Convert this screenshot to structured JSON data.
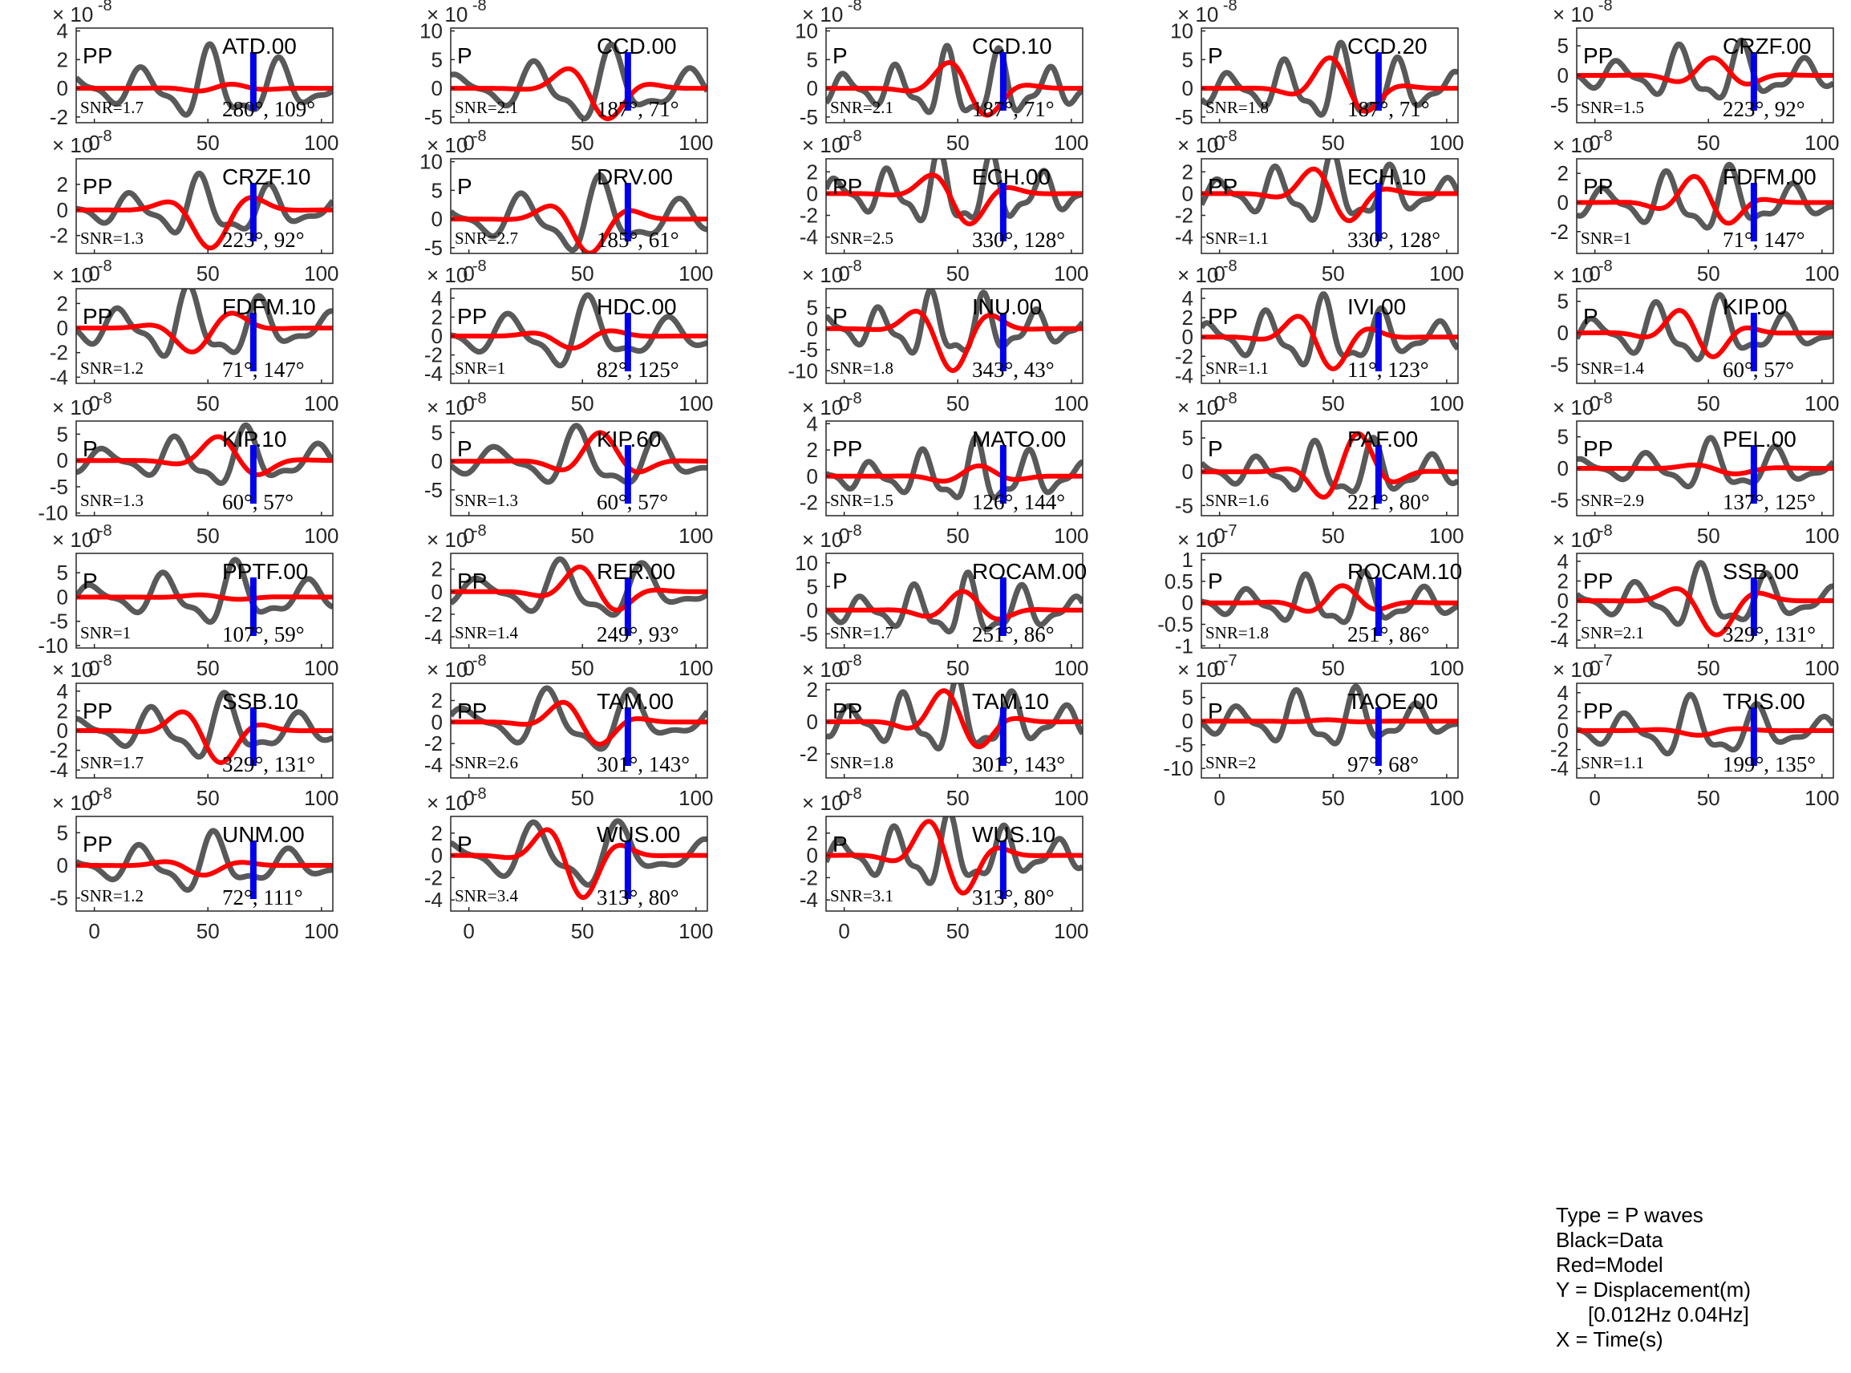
{
  "chart_data": {
    "type": "line",
    "xticks": [
      0,
      50,
      100
    ],
    "xlim": [
      -8,
      105
    ],
    "series_legend": [
      "Black=Data",
      "Red=Model"
    ],
    "colors": {
      "data": "#595959",
      "model": "#ff0000",
      "pick": "#0000ee"
    },
    "panels": [
      {
        "station": "ATD.00",
        "phase": "PP",
        "snr": "SNR=1.7",
        "angles": "280°, 109°",
        "exp": "-8",
        "yticks": [
          -2,
          0,
          2,
          4
        ],
        "ylim": [
          -2.4,
          4.2
        ],
        "data_env": 3.2,
        "model_env": 0.3,
        "seed": 1
      },
      {
        "station": "CCD.00",
        "phase": "P",
        "snr": "SNR=2.1",
        "angles": "187°, 71°",
        "exp": "-8",
        "yticks": [
          -5,
          0,
          5,
          10
        ],
        "ylim": [
          -6,
          10.5
        ],
        "data_env": 8,
        "model_env": 6,
        "seed": 2
      },
      {
        "station": "CCD.10",
        "phase": "P",
        "snr": "SNR=2.1",
        "angles": "187°, 71°",
        "exp": "-8",
        "yticks": [
          -5,
          0,
          5,
          10
        ],
        "ylim": [
          -6,
          10.5
        ],
        "data_env": 8,
        "model_env": 6,
        "seed": 3
      },
      {
        "station": "CCD.20",
        "phase": "P",
        "snr": "SNR=1.8",
        "angles": "187°, 71°",
        "exp": "-8",
        "yticks": [
          -5,
          0,
          5,
          10
        ],
        "ylim": [
          -6,
          10.5
        ],
        "data_env": 8,
        "model_env": 6,
        "seed": 4
      },
      {
        "station": "CRZF.00",
        "phase": "PP",
        "snr": "SNR=1.5",
        "angles": "223°, 92°",
        "exp": "-8",
        "yticks": [
          -5,
          0,
          5
        ],
        "ylim": [
          -8,
          8
        ],
        "data_env": 6.5,
        "model_env": 3,
        "seed": 5
      },
      {
        "station": "CRZF.10",
        "phase": "PP",
        "snr": "SNR=1.3",
        "angles": "223°, 92°",
        "exp": "-8",
        "yticks": [
          -2,
          0,
          2
        ],
        "ylim": [
          -3.4,
          4
        ],
        "data_env": 3,
        "model_env": 3,
        "seed": 6
      },
      {
        "station": "DRV.00",
        "phase": "P",
        "snr": "SNR=2.7",
        "angles": "185°, 61°",
        "exp": "-8",
        "yticks": [
          -5,
          0,
          5,
          10
        ],
        "ylim": [
          -6,
          10.5
        ],
        "data_env": 8,
        "model_env": 6,
        "seed": 7
      },
      {
        "station": "ECH.00",
        "phase": "PP",
        "snr": "SNR=2.5",
        "angles": "330°, 128°",
        "exp": "-8",
        "yticks": [
          -4,
          -2,
          0,
          2
        ],
        "ylim": [
          -5.5,
          3.2
        ],
        "data_env": 4.5,
        "model_env": 3,
        "seed": 8
      },
      {
        "station": "ECH.10",
        "phase": "PP",
        "snr": "SNR=1.1",
        "angles": "330°, 128°",
        "exp": "-8",
        "yticks": [
          -4,
          -2,
          0,
          2
        ],
        "ylim": [
          -5.5,
          3.2
        ],
        "data_env": 4,
        "model_env": 3,
        "seed": 9
      },
      {
        "station": "FDFM.00",
        "phase": "PP",
        "snr": "SNR=1",
        "angles": "71°, 147°",
        "exp": "-8",
        "yticks": [
          -2,
          0,
          2
        ],
        "ylim": [
          -3.5,
          3
        ],
        "data_env": 2.8,
        "model_env": 2,
        "seed": 10
      },
      {
        "station": "FDFM.10",
        "phase": "PP",
        "snr": "SNR=1.2",
        "angles": "71°, 147°",
        "exp": "-8",
        "yticks": [
          -4,
          -2,
          0,
          2
        ],
        "ylim": [
          -4.5,
          3.2
        ],
        "data_env": 3.8,
        "model_env": 2.2,
        "seed": 11
      },
      {
        "station": "HDC.00",
        "phase": "PP",
        "snr": "SNR=1",
        "angles": "82°, 125°",
        "exp": "-8",
        "yticks": [
          -4,
          -2,
          0,
          2,
          4
        ],
        "ylim": [
          -5,
          5
        ],
        "data_env": 4.5,
        "model_env": 1.3,
        "seed": 12
      },
      {
        "station": "INU.00",
        "phase": "P",
        "snr": "SNR=1.8",
        "angles": "343°, 43°",
        "exp": "-8",
        "yticks": [
          -10,
          -5,
          0,
          5
        ],
        "ylim": [
          -13,
          9.5
        ],
        "data_env": 10,
        "model_env": 10,
        "seed": 13
      },
      {
        "station": "IVI.00",
        "phase": "PP",
        "snr": "SNR=1.1",
        "angles": "11°, 123°",
        "exp": "-8",
        "yticks": [
          -4,
          -2,
          0,
          2,
          4
        ],
        "ylim": [
          -4.8,
          5
        ],
        "data_env": 4.5,
        "model_env": 3.5,
        "seed": 14
      },
      {
        "station": "KIP.00",
        "phase": "P",
        "snr": "SNR=1.4",
        "angles": "60°, 57°",
        "exp": "-8",
        "yticks": [
          -5,
          0,
          5
        ],
        "ylim": [
          -8,
          7
        ],
        "data_env": 6.5,
        "model_env": 4.5,
        "seed": 15
      },
      {
        "station": "KIP.10",
        "phase": "P",
        "snr": "SNR=1.3",
        "angles": "60°, 57°",
        "exp": "-8",
        "yticks": [
          -10,
          -5,
          0,
          5
        ],
        "ylim": [
          -10.5,
          7.5
        ],
        "data_env": 7,
        "model_env": 5,
        "seed": 16
      },
      {
        "station": "KIP.60",
        "phase": "P",
        "snr": "SNR=1.3",
        "angles": "60°, 57°",
        "exp": "-8",
        "yticks": [
          -5,
          0,
          5
        ],
        "ylim": [
          -9.5,
          7
        ],
        "data_env": 7,
        "model_env": 5,
        "seed": 17
      },
      {
        "station": "MATO.00",
        "phase": "PP",
        "snr": "SNR=1.5",
        "angles": "126°, 144°",
        "exp": "-8",
        "yticks": [
          -2,
          0,
          2,
          4
        ],
        "ylim": [
          -3,
          4.2
        ],
        "data_env": 3,
        "model_env": 0.8,
        "seed": 18
      },
      {
        "station": "PAF.00",
        "phase": "P",
        "snr": "SNR=1.6",
        "angles": "221°, 80°",
        "exp": "-8",
        "yticks": [
          -5,
          0,
          5
        ],
        "ylim": [
          -6.5,
          7.5
        ],
        "data_env": 5.5,
        "model_env": 6,
        "seed": 19
      },
      {
        "station": "PEL.00",
        "phase": "PP",
        "snr": "SNR=2.9",
        "angles": "137°, 125°",
        "exp": "-8",
        "yticks": [
          -5,
          0,
          5
        ],
        "ylim": [
          -7.5,
          7.5
        ],
        "data_env": 5,
        "model_env": 1,
        "seed": 20
      },
      {
        "station": "PPTF.00",
        "phase": "P",
        "snr": "SNR=1",
        "angles": "107°, 59°",
        "exp": "-8",
        "yticks": [
          -10,
          -5,
          0,
          5
        ],
        "ylim": [
          -10.5,
          9
        ],
        "data_env": 8,
        "model_env": 0.6,
        "seed": 21
      },
      {
        "station": "RER.00",
        "phase": "PP",
        "snr": "SNR=1.4",
        "angles": "249°, 93°",
        "exp": "-8",
        "yticks": [
          -4,
          -2,
          0,
          2
        ],
        "ylim": [
          -5,
          3.4
        ],
        "data_env": 3.5,
        "model_env": 2.5,
        "seed": 22
      },
      {
        "station": "ROCAM.00",
        "phase": "P",
        "snr": "SNR=1.7",
        "angles": "251°, 86°",
        "exp": "-8",
        "yticks": [
          -5,
          0,
          5,
          10
        ],
        "ylim": [
          -8,
          12
        ],
        "data_env": 8,
        "model_env": 4,
        "seed": 23
      },
      {
        "station": "ROCAM.10",
        "phase": "P",
        "snr": "SNR=1.8",
        "angles": "251°, 86°",
        "exp": "-7",
        "yticks": [
          -1,
          -0.5,
          0,
          0.5,
          1
        ],
        "ylim": [
          -1.05,
          1.15
        ],
        "data_env": 0.8,
        "model_env": 0.4,
        "seed": 24
      },
      {
        "station": "SSB.00",
        "phase": "PP",
        "snr": "SNR=2.1",
        "angles": "329°, 131°",
        "exp": "-8",
        "yticks": [
          -4,
          -2,
          0,
          2,
          4
        ],
        "ylim": [
          -4.8,
          4.8
        ],
        "data_env": 4,
        "model_env": 3.5,
        "seed": 25
      },
      {
        "station": "SSB.10",
        "phase": "PP",
        "snr": "SNR=1.7",
        "angles": "329°, 131°",
        "exp": "-8",
        "yticks": [
          -4,
          -2,
          0,
          2,
          4
        ],
        "ylim": [
          -4.8,
          4.8
        ],
        "data_env": 4,
        "model_env": 3.5,
        "seed": 26
      },
      {
        "station": "TAM.00",
        "phase": "PP",
        "snr": "SNR=2.6",
        "angles": "301°, 143°",
        "exp": "-8",
        "yticks": [
          -4,
          -2,
          0,
          2
        ],
        "ylim": [
          -5.2,
          3.6
        ],
        "data_env": 4,
        "model_env": 2.5,
        "seed": 27
      },
      {
        "station": "TAM.10",
        "phase": "PP",
        "snr": "SNR=1.8",
        "angles": "301°, 143°",
        "exp": "-8",
        "yticks": [
          -2,
          0,
          2
        ],
        "ylim": [
          -3.5,
          2.4
        ],
        "data_env": 2.8,
        "model_env": 2.2,
        "seed": 28
      },
      {
        "station": "TAOE.00",
        "phase": "P",
        "snr": "SNR=2",
        "angles": "97°, 68°",
        "exp": "-7",
        "yticks": [
          -10,
          -5,
          0,
          5
        ],
        "ylim": [
          -12,
          8
        ],
        "data_env": 8,
        "model_env": 0.3,
        "seed": 29
      },
      {
        "station": "TRIS.00",
        "phase": "PP",
        "snr": "SNR=1.1",
        "angles": "199°, 135°",
        "exp": "-7",
        "yticks": [
          -4,
          -2,
          0,
          2,
          4
        ],
        "ylim": [
          -5,
          5
        ],
        "data_env": 4,
        "model_env": 0.5,
        "seed": 30
      },
      {
        "station": "UNM.00",
        "phase": "PP",
        "snr": "SNR=1.2",
        "angles": "72°, 111°",
        "exp": "-8",
        "yticks": [
          -5,
          0,
          5
        ],
        "ylim": [
          -7,
          7.5
        ],
        "data_env": 5.5,
        "model_env": 1.5,
        "seed": 31
      },
      {
        "station": "WUS.00",
        "phase": "P",
        "snr": "SNR=3.4",
        "angles": "313°, 80°",
        "exp": "-8",
        "yticks": [
          -4,
          -2,
          0,
          2
        ],
        "ylim": [
          -5,
          3.5
        ],
        "data_env": 4,
        "model_env": 4,
        "seed": 32
      },
      {
        "station": "WUS.10",
        "phase": "P",
        "snr": "SNR=3.1",
        "angles": "313°, 80°",
        "exp": "-8",
        "yticks": [
          -4,
          -2,
          0,
          2
        ],
        "ylim": [
          -5,
          3.5
        ],
        "data_env": 4,
        "model_env": 4,
        "seed": 33
      }
    ],
    "legend_text": {
      "type": "Type = P waves",
      "black": "Black=Data",
      "red": "Red=Model",
      "y": "Y = Displacement(m)",
      "band": "[0.012Hz 0.04Hz]",
      "x": "X = Time(s)"
    }
  }
}
